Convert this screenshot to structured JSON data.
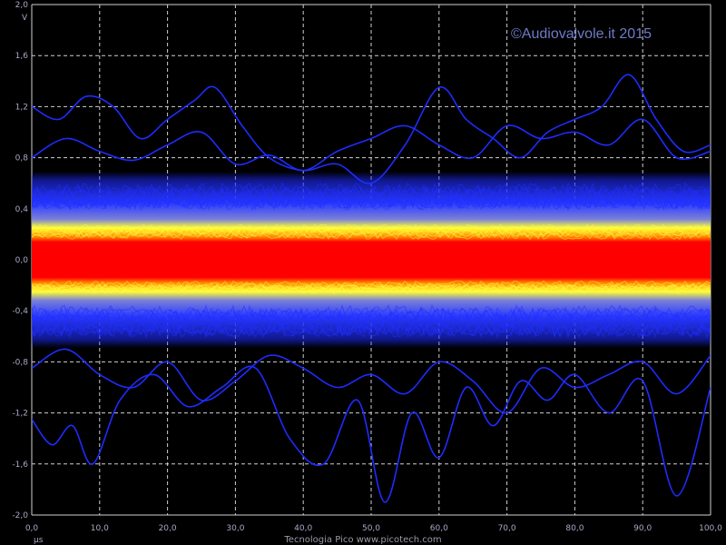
{
  "chart_data": {
    "type": "line",
    "title": "",
    "watermark": "©Audiovalvole.it 2015",
    "footer": "Tecnologia Pico  www.picotech.com",
    "xunit": "µs",
    "yunit": "V",
    "xlim": [
      0,
      100
    ],
    "ylim": [
      -2.0,
      2.0
    ],
    "x_ticks": [
      "0,0",
      "10,0",
      "20,0",
      "30,0",
      "40,0",
      "50,0",
      "60,0",
      "70,0",
      "80,0",
      "90,0",
      "100,0"
    ],
    "y_ticks": [
      "2,0",
      "1,6",
      "1,2",
      "0,8",
      "0,4",
      "0,0",
      "-0,4",
      "-0,8",
      "-1,2",
      "-1,6",
      "-2,0"
    ],
    "grid": true,
    "persistence_mode": true,
    "density_colors": {
      "rare": "#1e2cff",
      "medium": "#ffff00",
      "frequent": "#ff0000"
    },
    "band": {
      "frequent_v": [
        -0.15,
        0.15
      ],
      "medium_v": [
        -0.28,
        0.28
      ],
      "rare_v": [
        -0.55,
        0.55
      ]
    },
    "series": [
      {
        "x": [
          0,
          4,
          8,
          12,
          16,
          20,
          24,
          27,
          31,
          35,
          40,
          45,
          50,
          55,
          60,
          64,
          68,
          72,
          76,
          80,
          84,
          88,
          92,
          96,
          100
        ],
        "values": [
          1.2,
          1.1,
          1.28,
          1.2,
          0.95,
          1.1,
          1.25,
          1.35,
          1.05,
          0.8,
          0.7,
          0.75,
          0.6,
          0.9,
          1.35,
          1.1,
          0.95,
          0.8,
          1.0,
          1.1,
          1.2,
          1.45,
          1.1,
          0.85,
          0.9
        ]
      },
      {
        "x": [
          0,
          3,
          6,
          9,
          13,
          18,
          23,
          28,
          33,
          38,
          43,
          48,
          52,
          56,
          60,
          64,
          68,
          72,
          76,
          80,
          85,
          90,
          95,
          100
        ],
        "values": [
          -1.25,
          -1.45,
          -1.3,
          -1.6,
          -1.1,
          -0.9,
          -1.15,
          -1.0,
          -0.85,
          -1.4,
          -1.6,
          -1.1,
          -1.9,
          -1.2,
          -1.55,
          -1.0,
          -1.3,
          -0.95,
          -1.1,
          -0.9,
          -1.2,
          -0.95,
          -1.85,
          -1.0
        ]
      },
      {
        "x": [
          0,
          5,
          10,
          15,
          20,
          25,
          30,
          35,
          40,
          45,
          50,
          55,
          60,
          65,
          70,
          75,
          80,
          85,
          90,
          95,
          100
        ],
        "values": [
          0.8,
          0.95,
          0.85,
          0.78,
          0.9,
          1.0,
          0.75,
          0.82,
          0.7,
          0.85,
          0.95,
          1.05,
          0.9,
          0.8,
          1.05,
          0.95,
          1.0,
          0.9,
          1.1,
          0.8,
          0.85
        ]
      },
      {
        "x": [
          0,
          5,
          10,
          15,
          20,
          25,
          30,
          35,
          40,
          45,
          50,
          55,
          60,
          65,
          70,
          75,
          80,
          85,
          90,
          95,
          100
        ],
        "values": [
          -0.85,
          -0.7,
          -0.9,
          -1.0,
          -0.8,
          -1.1,
          -0.95,
          -0.75,
          -0.85,
          -1.0,
          -0.9,
          -1.05,
          -0.8,
          -0.95,
          -1.2,
          -0.85,
          -1.0,
          -0.9,
          -0.8,
          -1.05,
          -0.75
        ]
      }
    ]
  }
}
